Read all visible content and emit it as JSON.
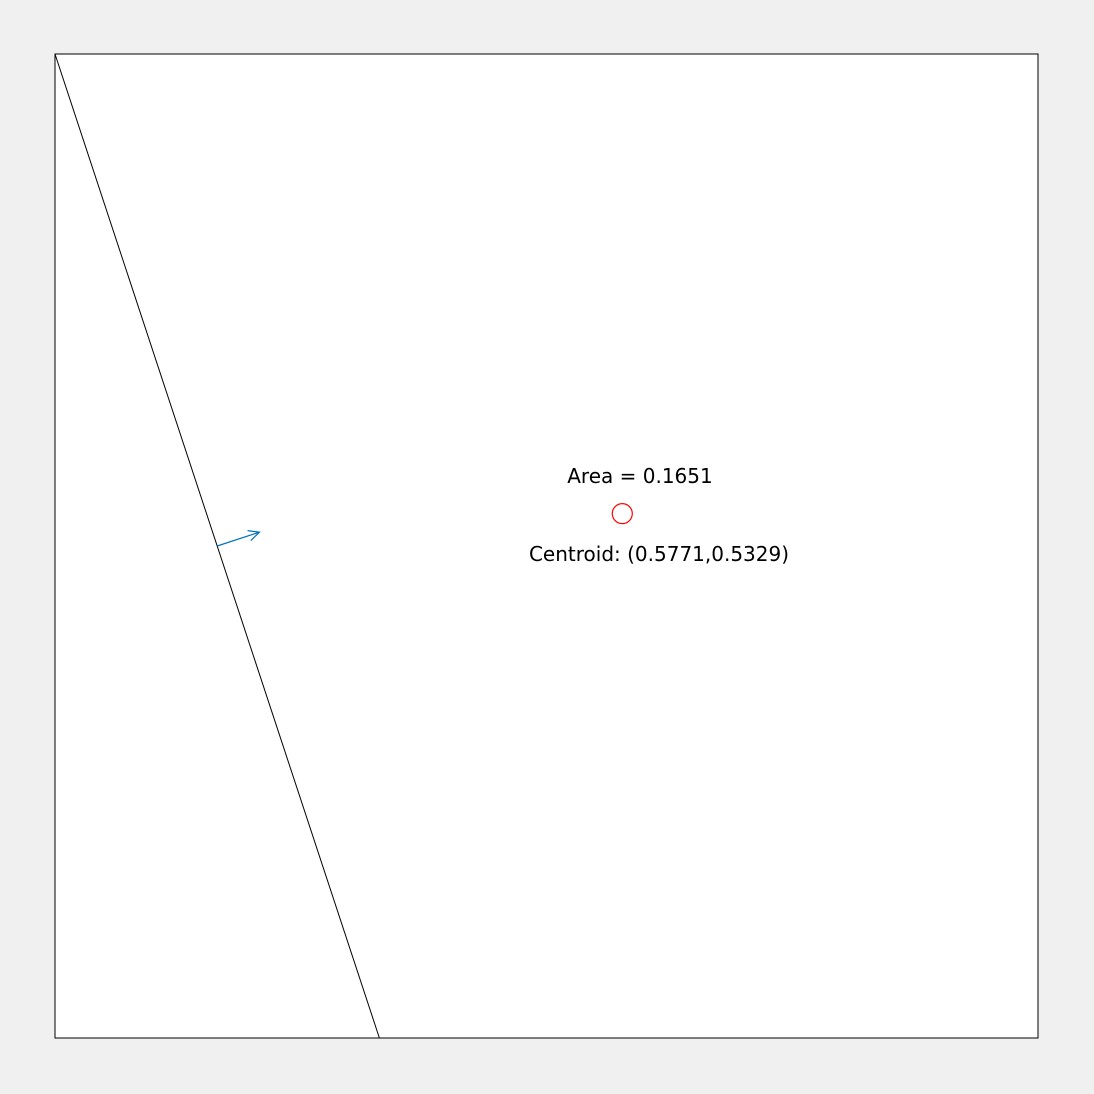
{
  "figure": {
    "area_label": "Area = 0.1651",
    "centroid_label": "Centroid: (0.5771,0.5329)"
  },
  "geometry": {
    "domain": [
      0,
      1
    ],
    "cut_line": {
      "from": [
        0.0,
        1.0
      ],
      "to": [
        0.33,
        0.0
      ]
    },
    "normal_arrow": {
      "from": [
        0.165,
        0.5
      ],
      "to": [
        0.208,
        0.514
      ]
    },
    "centroid": [
      0.5771,
      0.5329
    ],
    "area": 0.1651
  },
  "colors": {
    "background": "#f0f0f0",
    "plot_area": "#ffffff",
    "line": "#000000",
    "arrow": "#0072bd",
    "centroid_marker": "#ff0000"
  }
}
